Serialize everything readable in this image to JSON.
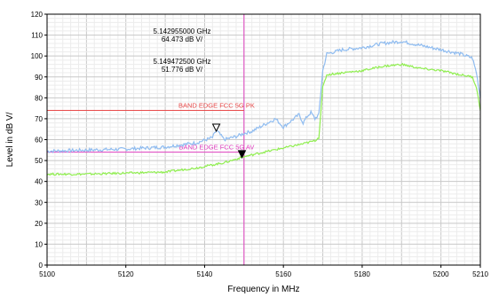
{
  "chart_data": {
    "type": "line",
    "xlabel": "Frequency in MHz",
    "ylabel": "Level in dB   V/",
    "xlim": [
      5100,
      5210
    ],
    "ylim": [
      0,
      120
    ],
    "xticks": [
      5100,
      5120,
      5140,
      5160,
      5180,
      5200,
      5210
    ],
    "yticks": [
      0,
      10,
      20,
      30,
      40,
      50,
      60,
      70,
      80,
      90,
      100,
      110,
      120
    ],
    "grid": true,
    "series": [
      {
        "color": "#8fbcf0",
        "points": [
          [
            5100,
            54.5
          ],
          [
            5110,
            55.0
          ],
          [
            5120,
            55.5
          ],
          [
            5130,
            56.5
          ],
          [
            5138,
            58.5
          ],
          [
            5142,
            61
          ],
          [
            5143,
            64.5
          ],
          [
            5145,
            60
          ],
          [
            5148,
            61.5
          ],
          [
            5150,
            63
          ],
          [
            5152,
            64
          ],
          [
            5154,
            66
          ],
          [
            5156,
            68
          ],
          [
            5158,
            70
          ],
          [
            5160,
            66
          ],
          [
            5162,
            69
          ],
          [
            5164,
            72
          ],
          [
            5165,
            68
          ],
          [
            5166,
            71
          ],
          [
            5167,
            73
          ],
          [
            5168,
            70
          ],
          [
            5169,
            72
          ],
          [
            5170,
            93
          ],
          [
            5171,
            101
          ],
          [
            5175,
            103
          ],
          [
            5180,
            104
          ],
          [
            5185,
            106
          ],
          [
            5190,
            107
          ],
          [
            5195,
            105
          ],
          [
            5200,
            103
          ],
          [
            5205,
            101
          ],
          [
            5208,
            99
          ],
          [
            5209,
            92
          ],
          [
            5210,
            80
          ]
        ]
      },
      {
        "color": "#90ee50",
        "points": [
          [
            5100,
            43.5
          ],
          [
            5110,
            43.5
          ],
          [
            5120,
            44
          ],
          [
            5130,
            44.5
          ],
          [
            5138,
            46.5
          ],
          [
            5145,
            49
          ],
          [
            5150,
            51.8
          ],
          [
            5155,
            54
          ],
          [
            5160,
            56
          ],
          [
            5165,
            58
          ],
          [
            5168,
            59.5
          ],
          [
            5169,
            61
          ],
          [
            5170,
            85
          ],
          [
            5171,
            91
          ],
          [
            5175,
            92
          ],
          [
            5180,
            93
          ],
          [
            5185,
            95
          ],
          [
            5190,
            96
          ],
          [
            5195,
            94
          ],
          [
            5200,
            93
          ],
          [
            5205,
            91
          ],
          [
            5208,
            90
          ],
          [
            5209,
            85
          ],
          [
            5210,
            74
          ]
        ]
      }
    ],
    "limit_lines": [
      {
        "label": "BAND EDGE  FCC 5G PK",
        "y": 74,
        "x_end": 5150,
        "color": "#e84a4a"
      },
      {
        "label": "BAND EDGE  FCC 5G AV",
        "y": 54,
        "x_end": 5150,
        "color": "#e040c0"
      }
    ],
    "vertical_line": {
      "x": 5150,
      "color": "#e040c0"
    },
    "markers": [
      {
        "x": 5142.955,
        "y": 64.473,
        "style": "hollow",
        "freq_label": "5.142955000 GHz",
        "level_label": "64.473 dB   V/"
      },
      {
        "x": 5149.4725,
        "y": 51.776,
        "style": "filled",
        "freq_label": "5.149472500 GHz",
        "level_label": "51.776 dB   V/"
      }
    ]
  }
}
